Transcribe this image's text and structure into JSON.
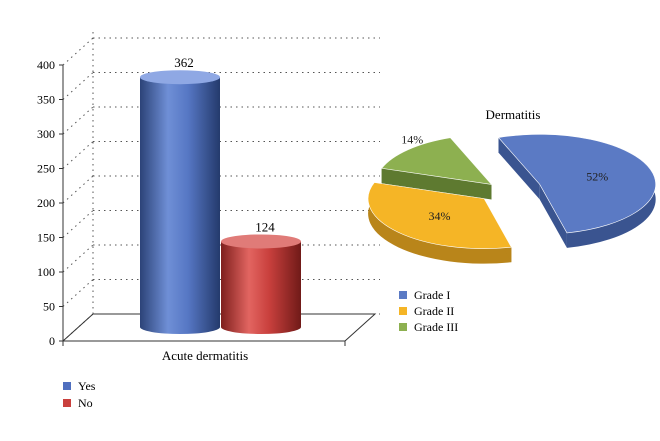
{
  "chart_data": [
    {
      "type": "bar",
      "style": "3d-cylinder",
      "categories": [
        "Acute dermatitis"
      ],
      "series": [
        {
          "name": "Yes",
          "values": [
            362
          ],
          "color": "#4f6fbf"
        },
        {
          "name": "No",
          "values": [
            124
          ],
          "color": "#c9403d"
        }
      ],
      "data_labels": [
        "362",
        "124"
      ],
      "xlabel": "Acute dermatitis",
      "ylim": [
        0,
        400
      ],
      "yticks": [
        0,
        50,
        100,
        150,
        200,
        250,
        300,
        350,
        400
      ],
      "ytick_labels": [
        "0",
        "50",
        "100",
        "150",
        "200",
        "250",
        "300",
        "350",
        "400"
      ],
      "grid": "dotted",
      "legend": {
        "placement": "bottom-left",
        "entries": [
          "Yes",
          "No"
        ]
      }
    },
    {
      "type": "pie",
      "style": "3d-exploded",
      "title": "Dermatitis",
      "labels": [
        "Grade I",
        "Grade II",
        "Grade III"
      ],
      "values": [
        52,
        34,
        14
      ],
      "value_labels": [
        "52%",
        "34%",
        "14%"
      ],
      "colors": [
        "#5b7ac4",
        "#f5b526",
        "#8db050"
      ],
      "legend": {
        "placement": "bottom",
        "entries": [
          "Grade I",
          "Grade II",
          "Grade III"
        ]
      }
    }
  ]
}
